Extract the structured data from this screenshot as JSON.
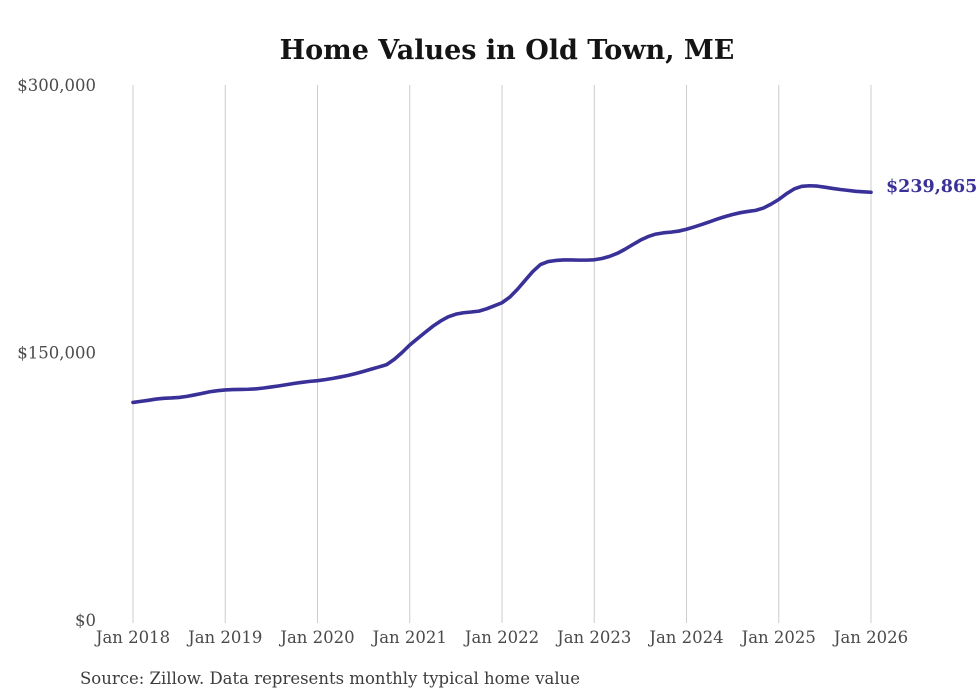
{
  "title": "Home Values in Old Town, ME",
  "source_note": "Source: Zillow. Data represents monthly typical home value",
  "colors": {
    "line": "#3a3198",
    "gridline": "#cccccc",
    "axis_text": "#4a4a4a",
    "title_text": "#141414",
    "background": "#ffffff"
  },
  "chart_data": {
    "type": "line",
    "title": "Home Values in Old Town, ME",
    "xlabel": "",
    "ylabel": "",
    "ylim": [
      0,
      300000
    ],
    "grid": "vertical-only",
    "legend": "none",
    "line_color": "#3a3198",
    "end_label": "$239,865",
    "latest_value": 239865,
    "x_tick_labels": [
      "Jan 2018",
      "Jan 2019",
      "Jan 2020",
      "Jan 2021",
      "Jan 2022",
      "Jan 2023",
      "Jan 2024",
      "Jan 2025",
      "Jan 2026"
    ],
    "y_ticks": [
      {
        "label": "$0",
        "value": 0
      },
      {
        "label": "$150,000",
        "value": 150000
      },
      {
        "label": "$300,000",
        "value": 300000
      }
    ],
    "series": [
      {
        "name": "Monthly typical home value",
        "start": "Jan 2018",
        "end": "Jan 2026",
        "interval": "monthly",
        "values": [
          122000,
          122600,
          123200,
          123900,
          124300,
          124500,
          124800,
          125400,
          126200,
          127100,
          128000,
          128600,
          129000,
          129200,
          129300,
          129400,
          129600,
          130100,
          130700,
          131300,
          132000,
          132700,
          133300,
          133800,
          134200,
          134800,
          135500,
          136300,
          137200,
          138200,
          139400,
          140700,
          141900,
          143200,
          146200,
          150000,
          154200,
          157800,
          161300,
          164700,
          167600,
          170000,
          171500,
          172300,
          172700,
          173200,
          174500,
          176200,
          177900,
          181000,
          185400,
          190400,
          195400,
          199300,
          201000,
          201600,
          201900,
          201900,
          201800,
          201800,
          202000,
          202700,
          203900,
          205600,
          207900,
          210500,
          213000,
          215000,
          216400,
          217100,
          217500,
          218100,
          219100,
          220400,
          221800,
          223300,
          224800,
          226200,
          227400,
          228400,
          229100,
          229700,
          231000,
          233200,
          235800,
          239000,
          241700,
          243200,
          243500,
          243300,
          242700,
          242000,
          241400,
          240900,
          240400,
          240100,
          239865
        ]
      }
    ]
  }
}
